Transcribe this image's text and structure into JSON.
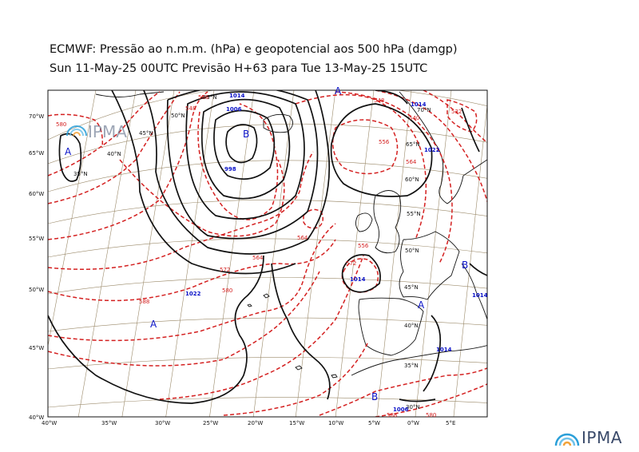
{
  "title": {
    "line1": "ECMWF:  Pressão ao n.m.m. (hPa) e geopotencial aos 500 hPa (damgp)",
    "line2": "Sun 11-May-25 00UTC Previsão H+63 para Tue 13-May-25 15UTC"
  },
  "logo": {
    "text": "IPMA"
  },
  "colors": {
    "mslp": "#111111",
    "geopotential": "#d42020",
    "pressure_labels": "#0b13c8",
    "graticule": "#9b8a6a"
  },
  "axes": {
    "lon_labels": [
      "40°W",
      "35°W",
      "30°W",
      "25°W",
      "20°W",
      "15°W",
      "10°W",
      "5°W",
      "0°W",
      "5°E"
    ],
    "lat_labels": [
      "70°W",
      "65°W",
      "60°W",
      "55°W",
      "50°W",
      "45°W",
      "40°W"
    ]
  },
  "grid_labels": {
    "lat": [
      "70°N",
      "65°N",
      "60°N",
      "55°N",
      "50°N",
      "45°N",
      "40°N",
      "35°N",
      "30°N"
    ],
    "lat_west": [
      "55°N",
      "50°N",
      "45°N",
      "40°N",
      "35°N"
    ]
  },
  "centres": {
    "high": "A",
    "low": "B"
  },
  "isobar_labels": [
    "1014",
    "1006",
    "998",
    "1014",
    "1022",
    "1014",
    "1014",
    "1006",
    "1014",
    "1022"
  ],
  "geopotential_labels": [
    "580",
    "548",
    "556",
    "564",
    "572",
    "580",
    "588",
    "556",
    "564",
    "572",
    "548",
    "540",
    "556",
    "564",
    "532",
    "580",
    "588"
  ]
}
